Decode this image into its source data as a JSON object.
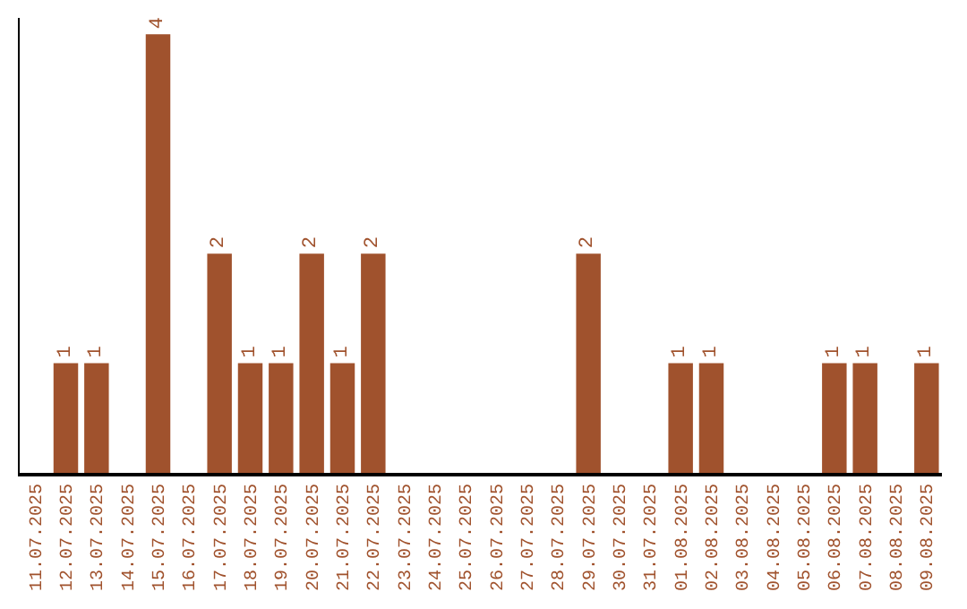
{
  "chart_data": {
    "type": "bar",
    "categories": [
      "11.07.2025",
      "12.07.2025",
      "13.07.2025",
      "14.07.2025",
      "15.07.2025",
      "16.07.2025",
      "17.07.2025",
      "18.07.2025",
      "19.07.2025",
      "20.07.2025",
      "21.07.2025",
      "22.07.2025",
      "23.07.2025",
      "24.07.2025",
      "25.07.2025",
      "26.07.2025",
      "27.07.2025",
      "28.07.2025",
      "29.07.2025",
      "30.07.2025",
      "31.07.2025",
      "01.08.2025",
      "02.08.2025",
      "03.08.2025",
      "04.08.2025",
      "05.08.2025",
      "06.08.2025",
      "07.08.2025",
      "08.08.2025",
      "09.08.2025"
    ],
    "values": [
      0,
      1,
      1,
      0,
      4,
      0,
      2,
      1,
      1,
      2,
      1,
      2,
      0,
      0,
      0,
      0,
      0,
      0,
      2,
      0,
      0,
      1,
      1,
      0,
      0,
      0,
      1,
      1,
      0,
      1
    ],
    "value_labels": [
      null,
      "1",
      "1",
      null,
      "4",
      null,
      "2",
      "1",
      "1",
      "2",
      "1",
      "2",
      null,
      null,
      null,
      null,
      null,
      null,
      "2",
      null,
      null,
      "1",
      "1",
      null,
      null,
      null,
      "1",
      "1",
      null,
      "1"
    ],
    "color": "#a0522d",
    "ylim": [
      0,
      4.15
    ]
  }
}
